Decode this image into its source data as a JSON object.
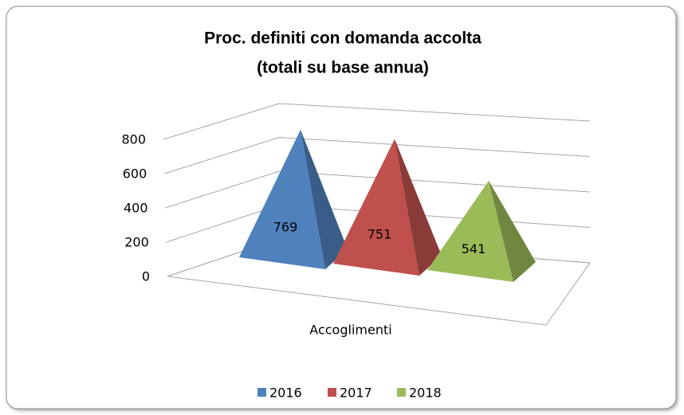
{
  "chart_data": {
    "type": "pyramid",
    "title": [
      "Proc. definiti con domanda accolta",
      "(totali su base annua)"
    ],
    "categories": [
      "Accoglimenti"
    ],
    "series": [
      {
        "name": "2016",
        "color": "#4f81bd",
        "values": [
          769
        ]
      },
      {
        "name": "2017",
        "color": "#c0504d",
        "values": [
          751
        ]
      },
      {
        "name": "2018",
        "color": "#9bbb59",
        "values": [
          541
        ]
      }
    ],
    "ylim": [
      0,
      800
    ],
    "yticks": [
      0,
      200,
      400,
      600,
      800
    ],
    "grid": true,
    "legend": "bottom"
  }
}
